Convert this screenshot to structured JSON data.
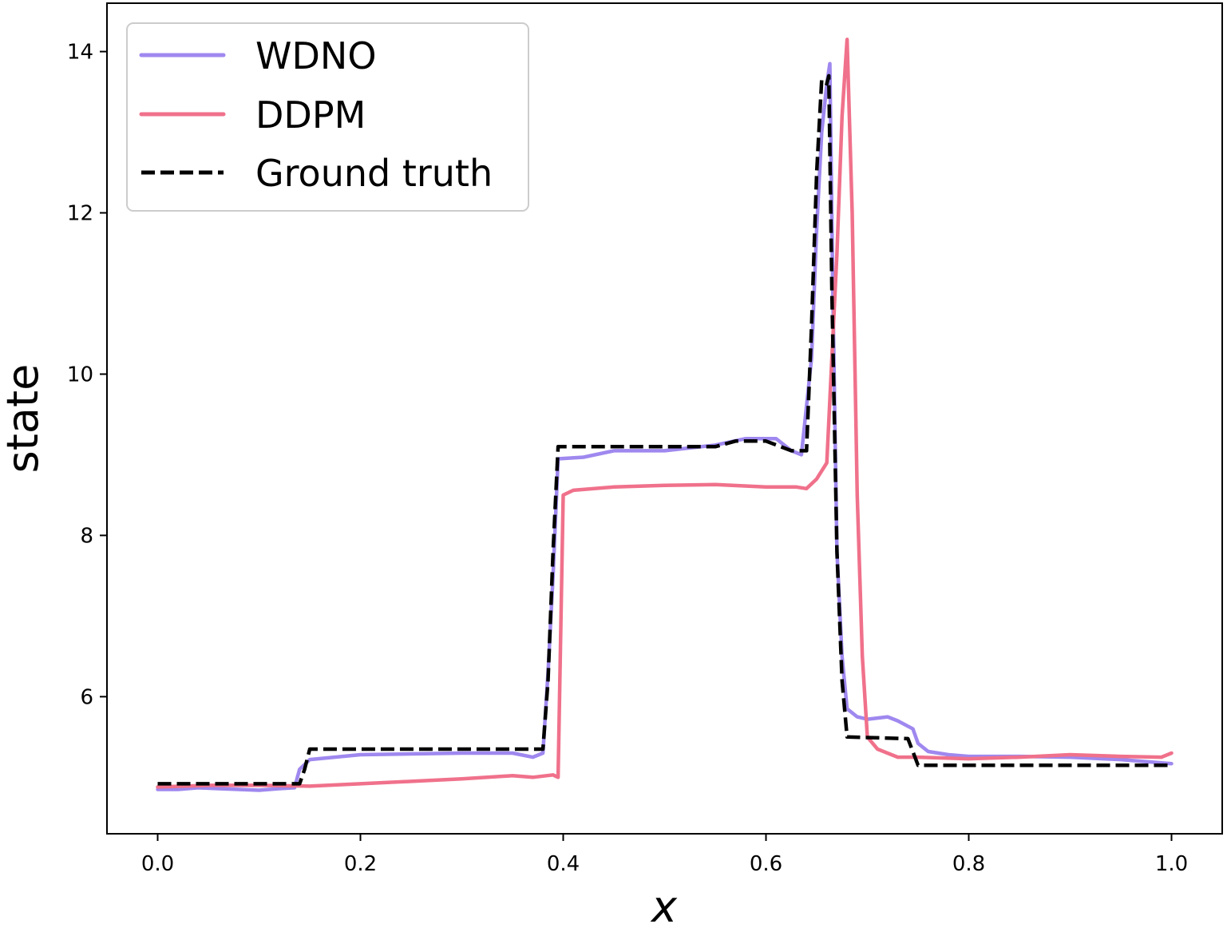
{
  "chart_data": {
    "type": "line",
    "xlabel": "x",
    "ylabel": "state",
    "xlim": [
      -0.05,
      1.05
    ],
    "ylim": [
      4.3,
      14.6
    ],
    "xticks": [
      0.0,
      0.2,
      0.4,
      0.6,
      0.8,
      1.0
    ],
    "xtick_labels": [
      "0.0",
      "0.2",
      "0.4",
      "0.6",
      "0.8",
      "1.0"
    ],
    "yticks": [
      6,
      8,
      10,
      12,
      14
    ],
    "ytick_labels": [
      "6",
      "8",
      "10",
      "12",
      "14"
    ],
    "grid": false,
    "legend_position": "top-left",
    "series": [
      {
        "name": "WDNO",
        "color": "#9f88ef",
        "style": "solid",
        "points": [
          [
            0.0,
            4.85
          ],
          [
            0.02,
            4.85
          ],
          [
            0.04,
            4.87
          ],
          [
            0.06,
            4.86
          ],
          [
            0.08,
            4.85
          ],
          [
            0.1,
            4.84
          ],
          [
            0.12,
            4.86
          ],
          [
            0.135,
            4.87
          ],
          [
            0.14,
            5.1
          ],
          [
            0.15,
            5.22
          ],
          [
            0.2,
            5.28
          ],
          [
            0.25,
            5.29
          ],
          [
            0.3,
            5.3
          ],
          [
            0.35,
            5.3
          ],
          [
            0.37,
            5.25
          ],
          [
            0.38,
            5.3
          ],
          [
            0.385,
            6.3
          ],
          [
            0.39,
            7.5
          ],
          [
            0.395,
            8.95
          ],
          [
            0.42,
            8.97
          ],
          [
            0.45,
            9.05
          ],
          [
            0.5,
            9.05
          ],
          [
            0.55,
            9.12
          ],
          [
            0.58,
            9.2
          ],
          [
            0.61,
            9.2
          ],
          [
            0.625,
            9.05
          ],
          [
            0.635,
            9.0
          ],
          [
            0.645,
            10.2
          ],
          [
            0.65,
            11.8
          ],
          [
            0.655,
            13.0
          ],
          [
            0.66,
            13.6
          ],
          [
            0.663,
            13.85
          ],
          [
            0.666,
            11.0
          ],
          [
            0.67,
            7.8
          ],
          [
            0.675,
            6.5
          ],
          [
            0.68,
            5.85
          ],
          [
            0.69,
            5.75
          ],
          [
            0.7,
            5.72
          ],
          [
            0.72,
            5.75
          ],
          [
            0.73,
            5.7
          ],
          [
            0.745,
            5.6
          ],
          [
            0.75,
            5.42
          ],
          [
            0.76,
            5.32
          ],
          [
            0.78,
            5.28
          ],
          [
            0.8,
            5.26
          ],
          [
            0.85,
            5.26
          ],
          [
            0.9,
            5.25
          ],
          [
            0.95,
            5.22
          ],
          [
            1.0,
            5.17
          ]
        ]
      },
      {
        "name": "DDPM",
        "color": "#f0718b",
        "style": "solid",
        "points": [
          [
            0.0,
            4.88
          ],
          [
            0.05,
            4.9
          ],
          [
            0.1,
            4.9
          ],
          [
            0.15,
            4.89
          ],
          [
            0.2,
            4.92
          ],
          [
            0.25,
            4.95
          ],
          [
            0.3,
            4.98
          ],
          [
            0.35,
            5.02
          ],
          [
            0.37,
            5.0
          ],
          [
            0.39,
            5.03
          ],
          [
            0.395,
            5.0
          ],
          [
            0.4,
            8.5
          ],
          [
            0.41,
            8.56
          ],
          [
            0.45,
            8.6
          ],
          [
            0.5,
            8.62
          ],
          [
            0.55,
            8.63
          ],
          [
            0.6,
            8.6
          ],
          [
            0.63,
            8.6
          ],
          [
            0.64,
            8.58
          ],
          [
            0.65,
            8.7
          ],
          [
            0.66,
            8.9
          ],
          [
            0.67,
            11.5
          ],
          [
            0.675,
            13.2
          ],
          [
            0.68,
            14.15
          ],
          [
            0.685,
            12.0
          ],
          [
            0.69,
            8.5
          ],
          [
            0.695,
            6.5
          ],
          [
            0.7,
            5.5
          ],
          [
            0.71,
            5.35
          ],
          [
            0.73,
            5.25
          ],
          [
            0.75,
            5.25
          ],
          [
            0.8,
            5.23
          ],
          [
            0.85,
            5.25
          ],
          [
            0.9,
            5.28
          ],
          [
            0.95,
            5.26
          ],
          [
            0.99,
            5.25
          ],
          [
            1.0,
            5.3
          ]
        ]
      },
      {
        "name": "Ground truth",
        "color": "#000000",
        "style": "dashed",
        "points": [
          [
            0.0,
            4.92
          ],
          [
            0.14,
            4.92
          ],
          [
            0.145,
            5.1
          ],
          [
            0.15,
            5.35
          ],
          [
            0.38,
            5.35
          ],
          [
            0.385,
            6.2
          ],
          [
            0.39,
            7.8
          ],
          [
            0.395,
            9.1
          ],
          [
            0.55,
            9.1
          ],
          [
            0.57,
            9.17
          ],
          [
            0.6,
            9.17
          ],
          [
            0.625,
            9.05
          ],
          [
            0.64,
            9.05
          ],
          [
            0.645,
            10.6
          ],
          [
            0.65,
            12.5
          ],
          [
            0.655,
            13.65
          ],
          [
            0.66,
            13.6
          ],
          [
            0.662,
            13.7
          ],
          [
            0.665,
            11.0
          ],
          [
            0.67,
            7.8
          ],
          [
            0.675,
            6.2
          ],
          [
            0.68,
            5.5
          ],
          [
            0.74,
            5.48
          ],
          [
            0.75,
            5.15
          ],
          [
            1.0,
            5.15
          ]
        ]
      }
    ]
  }
}
